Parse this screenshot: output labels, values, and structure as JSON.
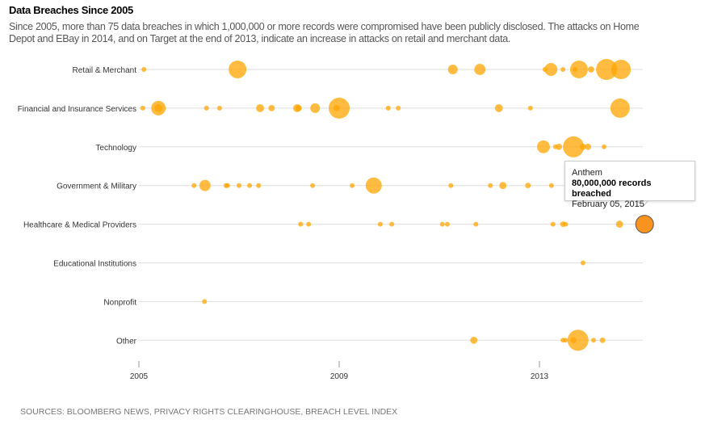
{
  "chart_data": {
    "type": "scatter",
    "title": "Data Breaches Since 2005",
    "subtitle": "Since 2005, more than 75 data breaches in which 1,000,000 or more records were compromised have been publicly disclosed. The attacks on Home Depot and EBay in 2014, and on Target at the end of 2013, indicate an increase in attacks on retail and merchant data.",
    "source": "SOURCES: BLOOMBERG NEWS, PRIVACY RIGHTS CLEARINGHOUSE, BREACH LEVEL INDEX",
    "x_ticks": [
      "2005",
      "2009",
      "2013"
    ],
    "xlim": [
      2005,
      2015.1
    ],
    "size_encoding": "records breached (millions)",
    "color": "#ffa500",
    "highlight_color": "#f7931e",
    "grid": true,
    "categories": [
      "Retail & Merchant",
      "Financial and Insurance Services",
      "Technology",
      "Government & Military",
      "Healthcare & Medical Providers",
      "Educational Institutions",
      "Nonprofit",
      "Other"
    ],
    "series": [
      {
        "category": "Retail & Merchant",
        "points": [
          [
            2005.1,
            1
          ],
          [
            2006.97,
            80
          ],
          [
            2011.27,
            24
          ],
          [
            2011.81,
            32
          ],
          [
            2013.11,
            2
          ],
          [
            2013.23,
            42
          ],
          [
            2013.47,
            2
          ],
          [
            2013.71,
            3
          ],
          [
            2013.79,
            80
          ],
          [
            2014.03,
            10
          ],
          [
            2014.34,
            112
          ],
          [
            2014.63,
            95
          ]
        ]
      },
      {
        "category": "Financial and Insurance Services",
        "points": [
          [
            2005.08,
            1
          ],
          [
            2005.39,
            54
          ],
          [
            2005.39,
            16
          ],
          [
            2006.35,
            2
          ],
          [
            2006.61,
            4
          ],
          [
            2007.42,
            16
          ],
          [
            2007.65,
            10
          ],
          [
            2008.16,
            16
          ],
          [
            2008.19,
            10
          ],
          [
            2008.52,
            24
          ],
          [
            2009.0,
            112
          ],
          [
            2008.95,
            10
          ],
          [
            2009.98,
            2
          ],
          [
            2010.18,
            4
          ],
          [
            2012.19,
            16
          ],
          [
            2012.82,
            2
          ],
          [
            2014.61,
            95
          ]
        ]
      },
      {
        "category": "Technology",
        "points": [
          [
            2013.08,
            42
          ],
          [
            2013.32,
            3
          ],
          [
            2013.39,
            10
          ],
          [
            2013.68,
            112
          ],
          [
            2013.87,
            10
          ],
          [
            2013.97,
            10
          ],
          [
            2014.29,
            3
          ]
        ]
      },
      {
        "category": "Government & Military",
        "points": [
          [
            2006.1,
            4
          ],
          [
            2006.32,
            32
          ],
          [
            2006.74,
            3
          ],
          [
            2006.77,
            3
          ],
          [
            2007.0,
            3
          ],
          [
            2007.21,
            6
          ],
          [
            2007.39,
            3
          ],
          [
            2008.47,
            5
          ],
          [
            2009.26,
            2
          ],
          [
            2009.69,
            66
          ],
          [
            2011.23,
            5
          ],
          [
            2012.02,
            3
          ],
          [
            2012.27,
            13
          ],
          [
            2012.77,
            8
          ],
          [
            2013.24,
            2
          ]
        ]
      },
      {
        "category": "Healthcare & Medical Providers",
        "points": [
          [
            2008.23,
            5
          ],
          [
            2008.39,
            3
          ],
          [
            2009.82,
            3
          ],
          [
            2010.05,
            3
          ],
          [
            2011.06,
            5
          ],
          [
            2011.16,
            5
          ],
          [
            2011.73,
            3
          ],
          [
            2013.27,
            2
          ],
          [
            2013.47,
            8
          ],
          [
            2013.52,
            5
          ],
          [
            2014.6,
            13
          ],
          [
            2015.1,
            80
          ]
        ]
      },
      {
        "category": "Educational Institutions",
        "points": [
          [
            2013.87,
            5
          ]
        ]
      },
      {
        "category": "Nonprofit",
        "points": [
          [
            2006.31,
            3
          ]
        ]
      },
      {
        "category": "Other",
        "points": [
          [
            2011.69,
            13
          ],
          [
            2013.47,
            5
          ],
          [
            2013.52,
            5
          ],
          [
            2013.68,
            10
          ],
          [
            2013.77,
            112
          ],
          [
            2014.08,
            3
          ],
          [
            2014.26,
            8
          ]
        ]
      }
    ],
    "tooltip": {
      "name": "Anthem",
      "records": "80,000,000 records breached",
      "date": "February 05, 2015"
    }
  }
}
